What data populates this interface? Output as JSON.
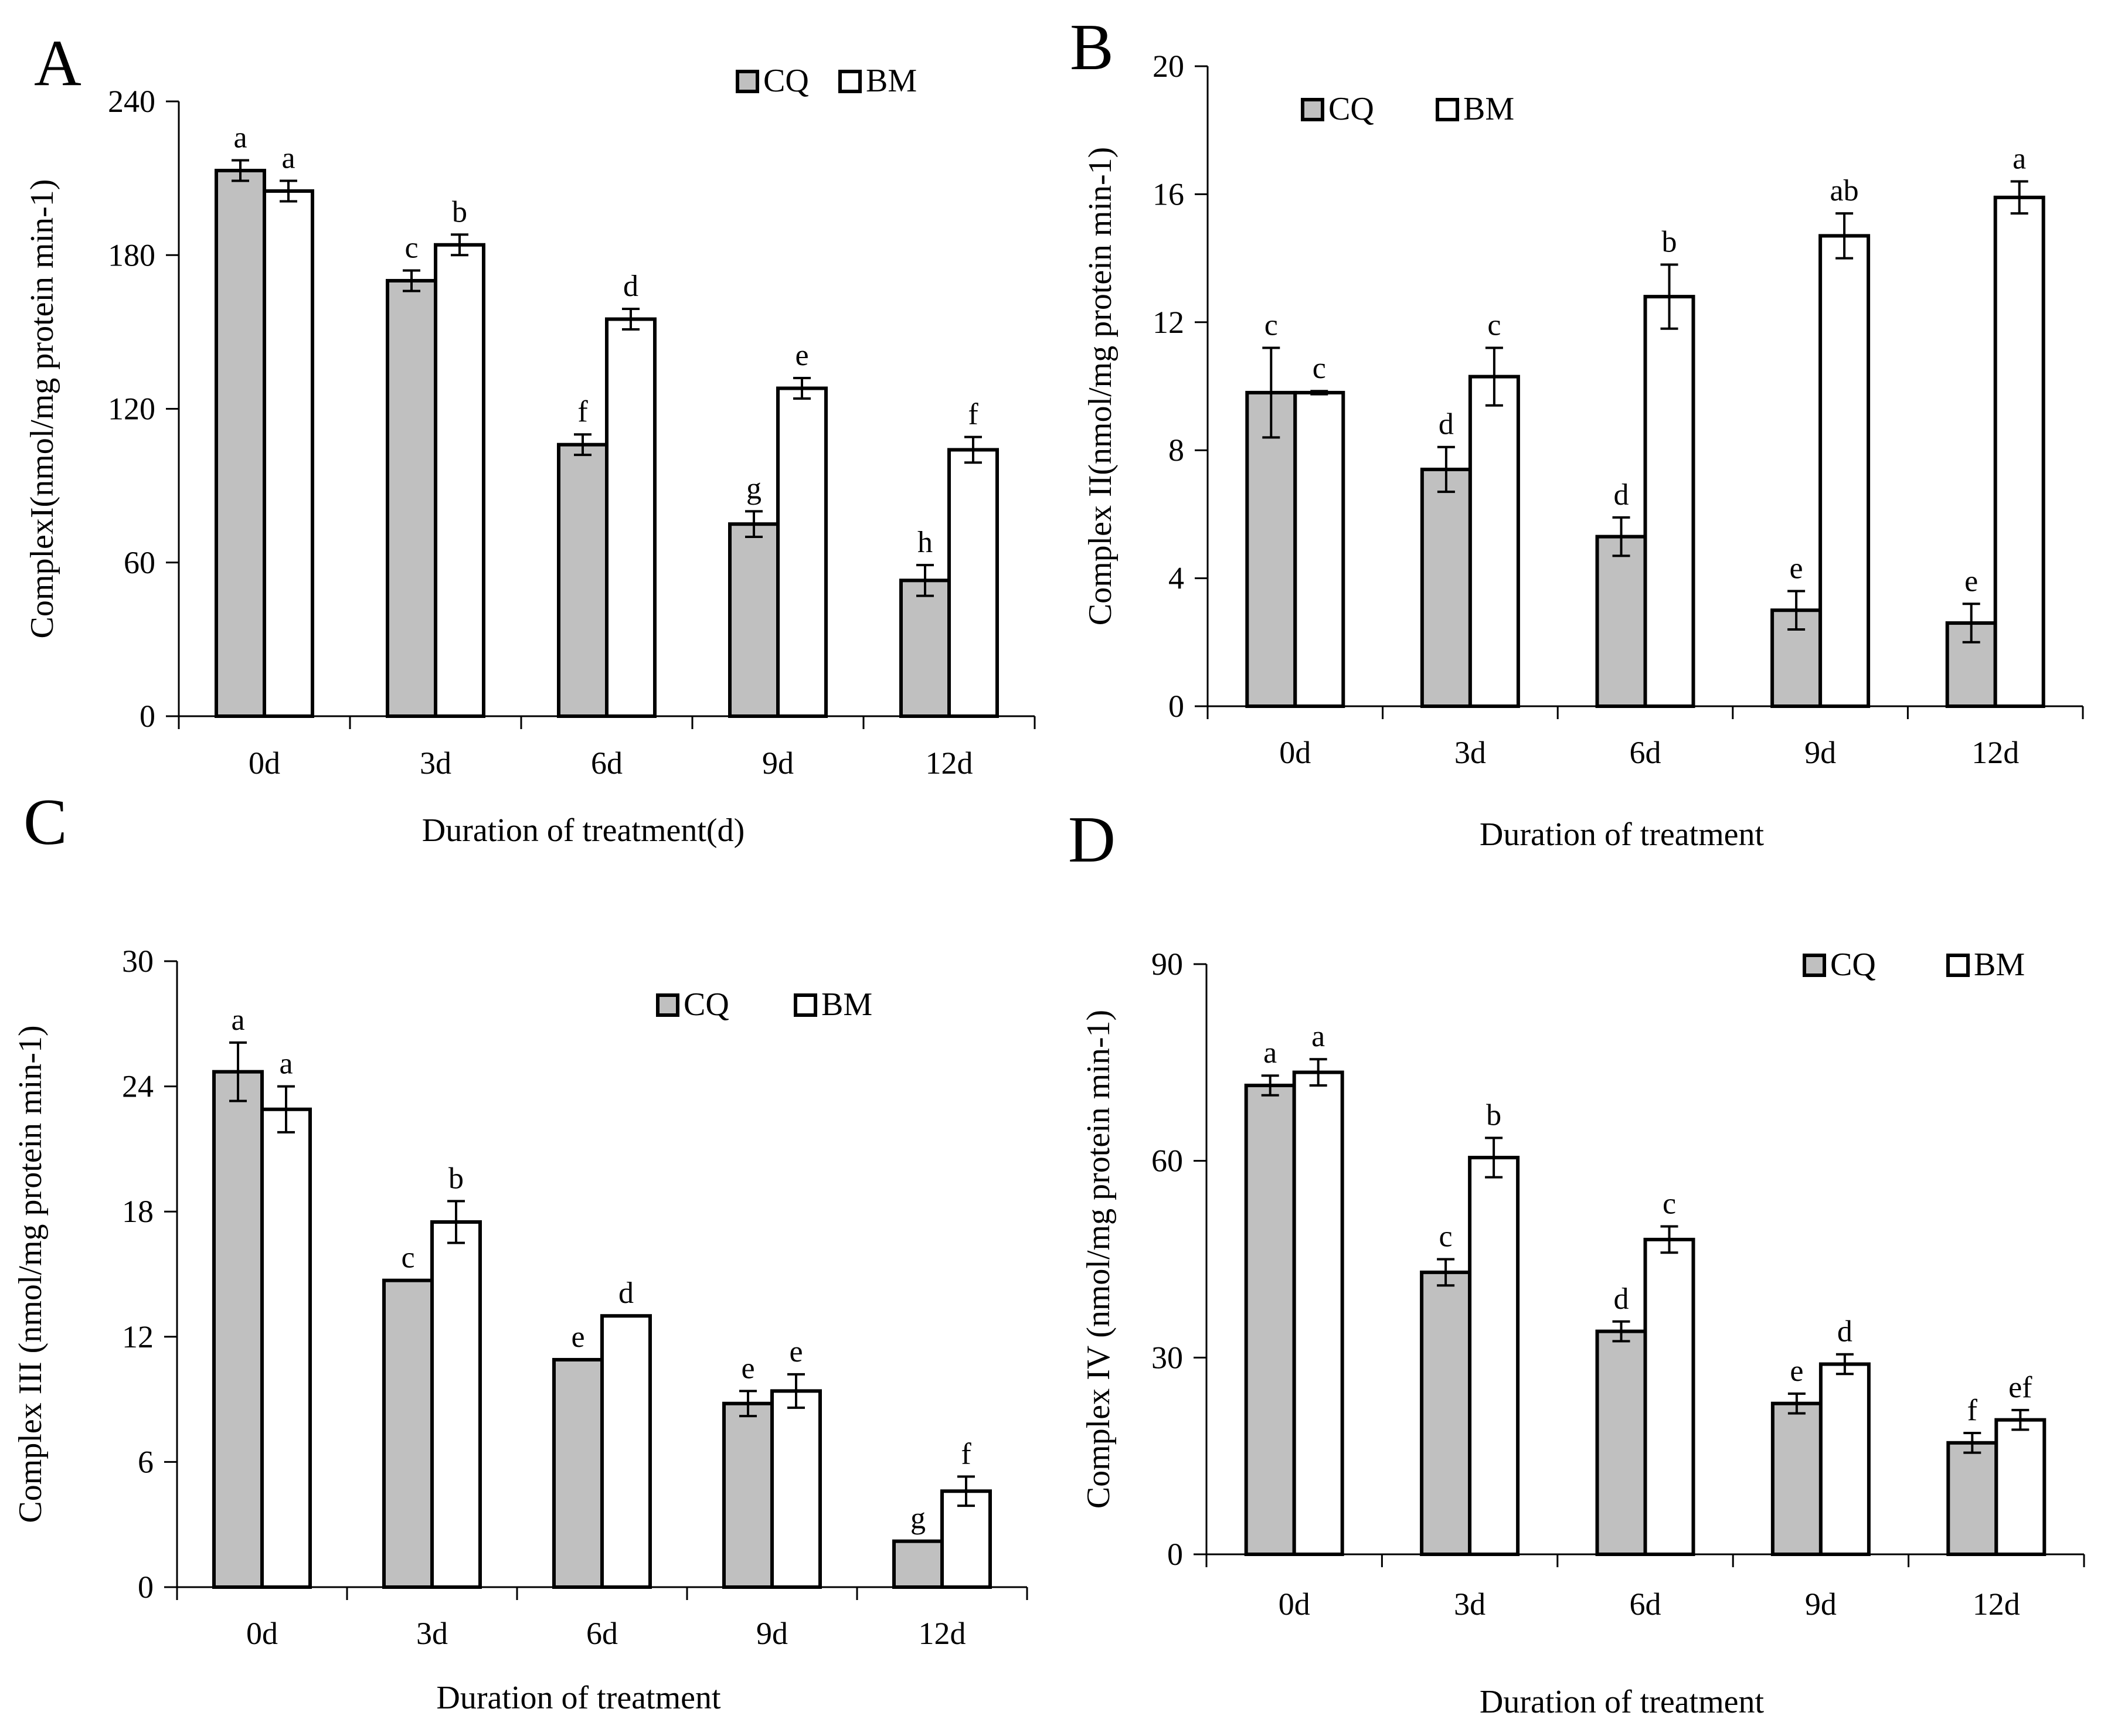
{
  "chart_data": [
    {
      "type": "bar",
      "panel": "A",
      "title": "",
      "xlabel": "Duration of treatment(d)",
      "ylabel": "ComplexI(nmol/mg protein min-1)",
      "ylim": [
        0,
        240
      ],
      "yticks": [
        0,
        60,
        120,
        180,
        240
      ],
      "categories": [
        "0d",
        "3d",
        "6d",
        "9d",
        "12d"
      ],
      "legend_position": "top-right",
      "series": [
        {
          "name": "CQ",
          "color": "#c0c0c0",
          "values": [
            213,
            170,
            106,
            75,
            53
          ],
          "errors": [
            4,
            4,
            4,
            5,
            6
          ],
          "labels": [
            "a",
            "c",
            "f",
            "g",
            "h"
          ]
        },
        {
          "name": "BM",
          "color": "#ffffff",
          "values": [
            205,
            184,
            155,
            128,
            104
          ],
          "errors": [
            4,
            4,
            4,
            4,
            5
          ],
          "labels": [
            "a",
            "b",
            "d",
            "e",
            "f"
          ]
        }
      ]
    },
    {
      "type": "bar",
      "panel": "B",
      "title": "",
      "xlabel": "Duration of treatment",
      "ylabel": "Complex II(nmol/mg protein min-1)",
      "ylim": [
        0,
        20
      ],
      "yticks": [
        0,
        4,
        8,
        12,
        16,
        20
      ],
      "categories": [
        "0d",
        "3d",
        "6d",
        "9d",
        "12d"
      ],
      "legend_position": "top-left",
      "series": [
        {
          "name": "CQ",
          "color": "#c0c0c0",
          "values": [
            9.8,
            7.4,
            5.3,
            3.0,
            2.6
          ],
          "errors": [
            1.4,
            0.7,
            0.6,
            0.6,
            0.6
          ],
          "labels": [
            "c",
            "d",
            "d",
            "e",
            "e"
          ]
        },
        {
          "name": "BM",
          "color": "#ffffff",
          "values": [
            9.8,
            10.3,
            12.8,
            14.7,
            15.9
          ],
          "errors": [
            0.05,
            0.9,
            1.0,
            0.7,
            0.5
          ],
          "labels": [
            "c",
            "c",
            "b",
            "ab",
            "a"
          ]
        }
      ]
    },
    {
      "type": "bar",
      "panel": "C",
      "title": "",
      "xlabel": "Duration of treatment",
      "ylabel": "Complex III (nmol/mg protein min-1)",
      "ylim": [
        0,
        30
      ],
      "yticks": [
        0,
        6,
        12,
        18,
        24,
        30
      ],
      "categories": [
        "0d",
        "3d",
        "6d",
        "9d",
        "12d"
      ],
      "legend_position": "top-right",
      "series": [
        {
          "name": "CQ",
          "color": "#c0c0c0",
          "values": [
            24.7,
            14.7,
            10.9,
            8.8,
            2.2
          ],
          "errors": [
            1.4,
            0,
            0,
            0.6,
            0
          ],
          "labels": [
            "a",
            "c",
            "e",
            "e",
            "g"
          ]
        },
        {
          "name": "BM",
          "color": "#ffffff",
          "values": [
            22.9,
            17.5,
            13.0,
            9.4,
            4.6
          ],
          "errors": [
            1.1,
            1.0,
            0,
            0.8,
            0.7
          ],
          "labels": [
            "a",
            "b",
            "d",
            "e",
            "f"
          ]
        }
      ]
    },
    {
      "type": "bar",
      "panel": "D",
      "title": "",
      "xlabel": "Duration of treatment",
      "ylabel": "Complex IV (nmol/mg protein min-1)",
      "ylim": [
        0,
        90
      ],
      "yticks": [
        0,
        30,
        60,
        90
      ],
      "categories": [
        "0d",
        "3d",
        "6d",
        "9d",
        "12d"
      ],
      "legend_position": "top-right",
      "series": [
        {
          "name": "CQ",
          "color": "#c0c0c0",
          "values": [
            71.5,
            43.0,
            34.0,
            23.0,
            17.0
          ],
          "errors": [
            1.5,
            2.0,
            1.5,
            1.5,
            1.5
          ],
          "labels": [
            "a",
            "c",
            "d",
            "e",
            "f"
          ]
        },
        {
          "name": "BM",
          "color": "#ffffff",
          "values": [
            73.5,
            60.5,
            48.0,
            29.0,
            20.5
          ],
          "errors": [
            2.0,
            3.0,
            2.0,
            1.5,
            1.5
          ],
          "labels": [
            "a",
            "b",
            "c",
            "d",
            "ef"
          ]
        }
      ]
    }
  ]
}
